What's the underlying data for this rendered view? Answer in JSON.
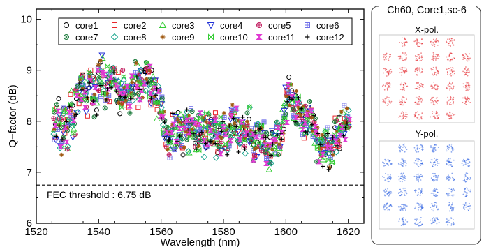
{
  "chart_data": [
    {
      "type": "scatter",
      "xlabel": "Wavelength (nm)",
      "ylabel": "Q−factor (dB)",
      "xlim": [
        1520,
        1625
      ],
      "ylim": [
        6,
        10.2
      ],
      "xticks": [
        1520,
        1540,
        1560,
        1580,
        1600,
        1620
      ],
      "yticks": [
        6,
        7,
        8,
        9,
        10
      ],
      "xtick_labels": [
        "1520",
        "1540",
        "1560",
        "1580",
        "1600",
        "1620"
      ],
      "ytick_labels": [
        "6",
        "7",
        "8",
        "9",
        "10"
      ],
      "threshold": {
        "value": 6.75,
        "label": "FEC threshold : 6.75 dB"
      },
      "legend_position": "top-right",
      "series": [
        {
          "name": "core1",
          "marker": "circle",
          "color": "#000000"
        },
        {
          "name": "core2",
          "marker": "square",
          "color": "#e8262b"
        },
        {
          "name": "core3",
          "marker": "triangle-up",
          "color": "#33cc33"
        },
        {
          "name": "core4",
          "marker": "triangle-down",
          "color": "#1f2fd6"
        },
        {
          "name": "core5",
          "marker": "circle-plus",
          "color": "#c0185c"
        },
        {
          "name": "core6",
          "marker": "square-plus",
          "color": "#6f6fe8"
        },
        {
          "name": "core7",
          "marker": "circle-x",
          "color": "#1a7a3a"
        },
        {
          "name": "core8",
          "marker": "diamond",
          "color": "#17a58c"
        },
        {
          "name": "core9",
          "marker": "asterisk",
          "color": "#a05a12"
        },
        {
          "name": "core10",
          "marker": "bowtie",
          "color": "#33cc33"
        },
        {
          "name": "core11",
          "marker": "hourglass",
          "color": "#e03ad2"
        },
        {
          "name": "core12",
          "marker": "plus",
          "color": "#000000"
        }
      ],
      "x": [
        1526,
        1527,
        1528,
        1529,
        1530,
        1531,
        1532,
        1533,
        1534,
        1535,
        1536,
        1537,
        1538,
        1539,
        1540,
        1541,
        1542,
        1543,
        1544,
        1545,
        1546,
        1547,
        1548,
        1549,
        1550,
        1551,
        1552,
        1553,
        1554,
        1555,
        1556,
        1557,
        1558,
        1559,
        1560,
        1561,
        1562,
        1563,
        1564,
        1565,
        1566,
        1567,
        1568,
        1569,
        1570,
        1571,
        1572,
        1573,
        1574,
        1575,
        1576,
        1577,
        1578,
        1579,
        1580,
        1581,
        1582,
        1583,
        1584,
        1585,
        1586,
        1587,
        1588,
        1589,
        1590,
        1591,
        1592,
        1593,
        1594,
        1595,
        1596,
        1597,
        1598,
        1599,
        1600,
        1601,
        1602,
        1603,
        1604,
        1605,
        1606,
        1607,
        1608,
        1609,
        1610,
        1611,
        1612,
        1613,
        1614,
        1615,
        1616,
        1617,
        1618,
        1619,
        1620
      ],
      "mean_q": [
        7.9,
        8.1,
        7.7,
        8.0,
        7.8,
        8.2,
        8.0,
        8.4,
        8.6,
        8.7,
        8.5,
        8.8,
        8.6,
        8.4,
        8.8,
        8.9,
        8.6,
        8.7,
        8.9,
        8.8,
        8.6,
        8.5,
        8.7,
        8.6,
        8.5,
        8.7,
        8.8,
        8.6,
        8.7,
        8.9,
        8.8,
        8.7,
        8.6,
        8.4,
        8.3,
        7.9,
        7.7,
        7.6,
        7.8,
        7.9,
        7.8,
        7.7,
        7.9,
        7.8,
        8.0,
        7.7,
        7.8,
        7.9,
        7.7,
        7.8,
        7.9,
        7.8,
        7.6,
        7.7,
        7.8,
        7.6,
        7.8,
        8.0,
        7.9,
        7.7,
        7.8,
        7.7,
        7.9,
        7.6,
        7.5,
        7.6,
        7.7,
        7.6,
        7.5,
        7.4,
        7.6,
        7.8,
        7.7,
        8.0,
        8.3,
        8.5,
        8.4,
        8.3,
        8.2,
        8.1,
        8.0,
        8.0,
        8.1,
        7.8,
        7.6,
        7.4,
        7.4,
        7.6,
        7.3,
        7.5,
        7.7,
        7.8,
        7.9,
        8.0,
        7.9
      ],
      "q_spread": 0.3
    },
    {
      "type": "constellation",
      "title": "Ch60, Core1,sc-6",
      "panels": [
        {
          "label": "X-pol.",
          "color": "#e3262c",
          "grid": 6,
          "missing_corners": true
        },
        {
          "label": "Y-pol.",
          "color": "#2a5fe0",
          "grid": 6,
          "missing_corners": true
        }
      ]
    }
  ]
}
